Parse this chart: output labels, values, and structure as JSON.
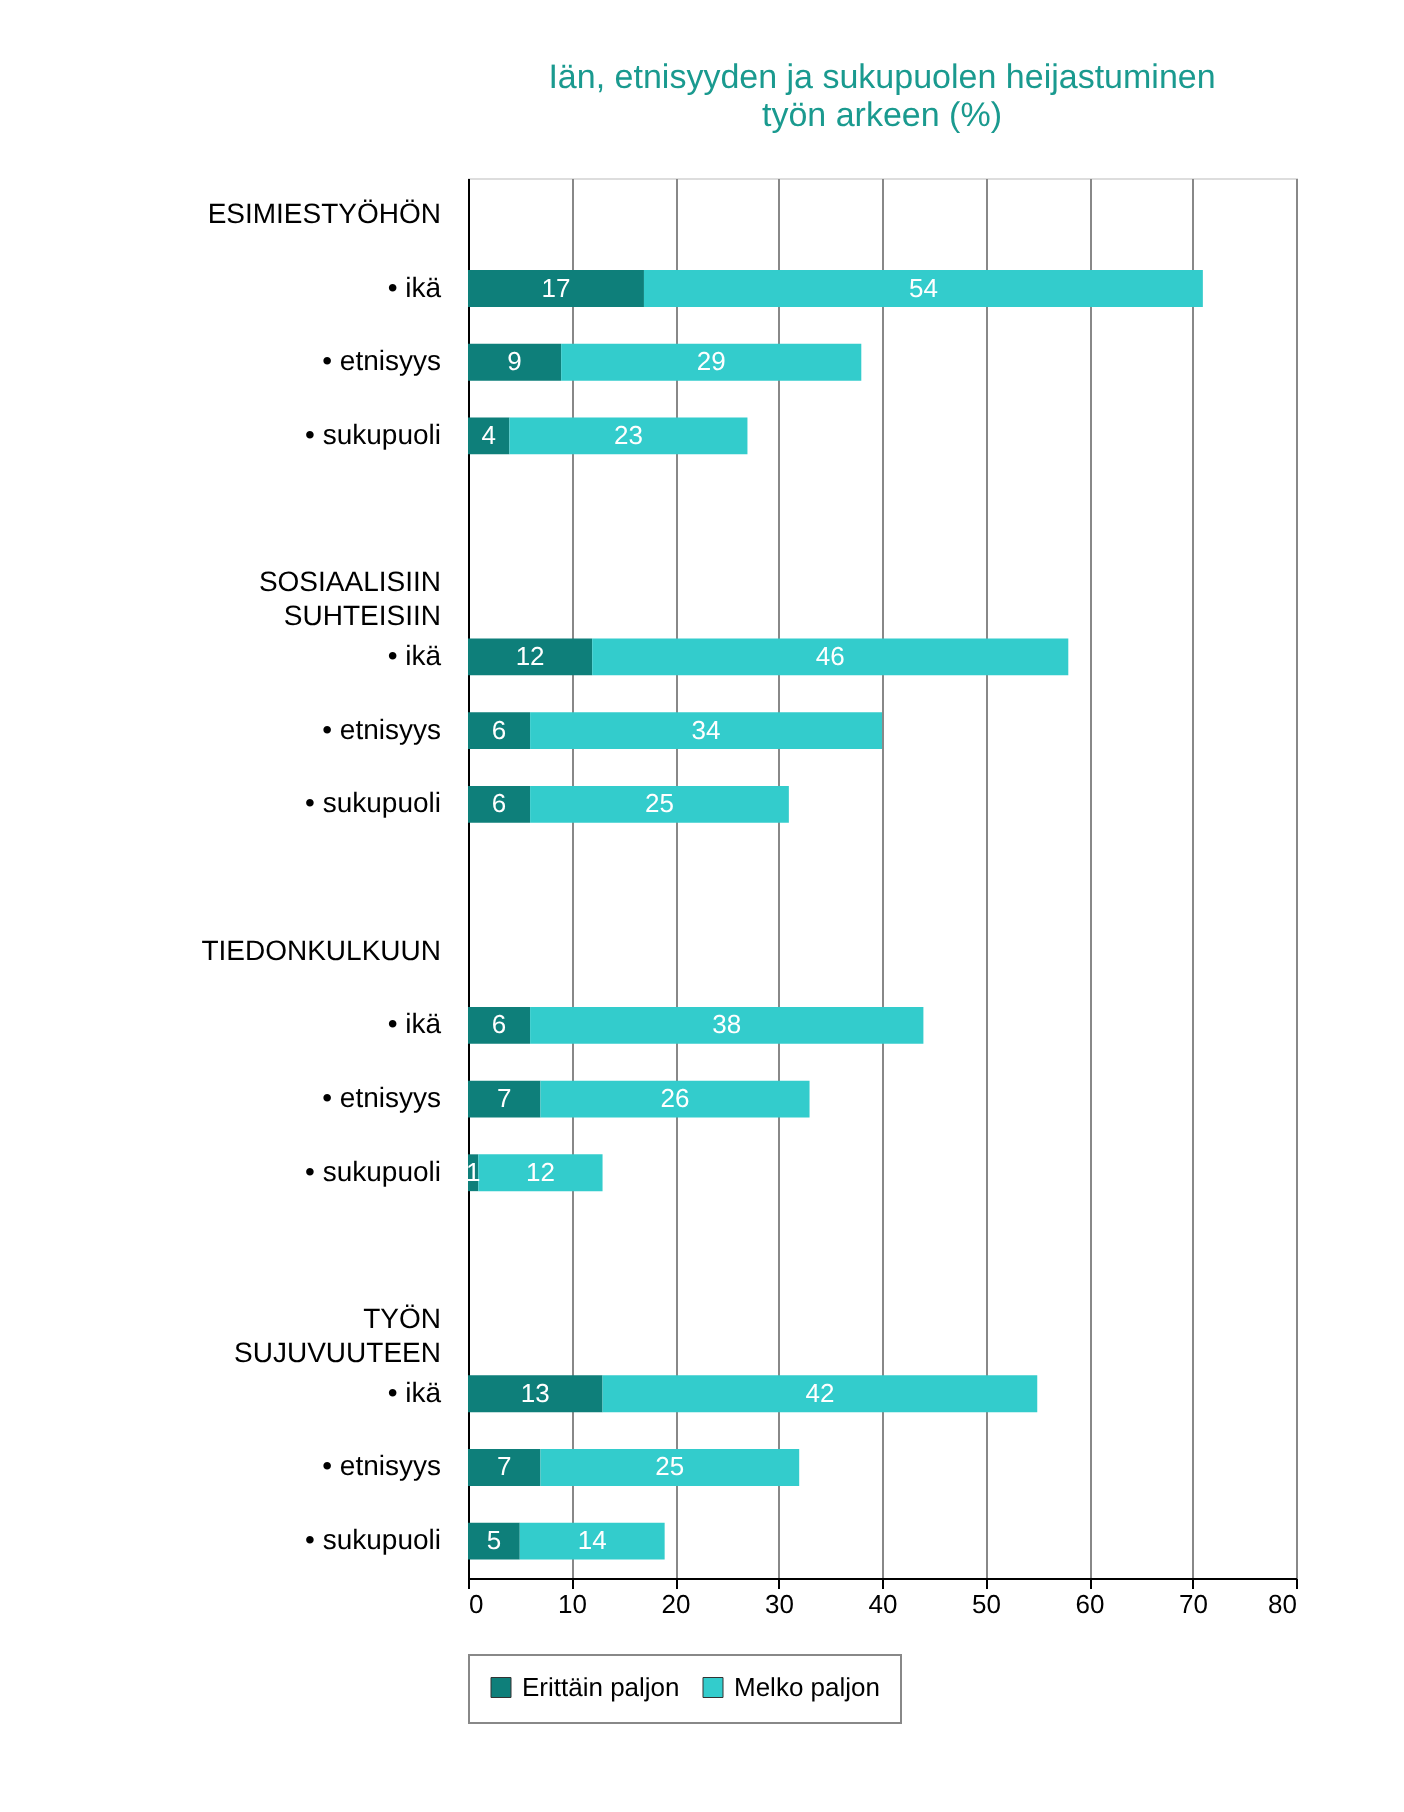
{
  "chart_data": {
    "type": "bar",
    "orientation": "horizontal",
    "stacked": true,
    "title": "Iän, etnisyyden ja sukupuolen heijastuminen\ntyön arkeen (%)",
    "categories": [
      "ESIMIESTYÖHÖN",
      "• ikä",
      "• etnisyys",
      "• sukupuoli",
      null,
      "SOSIAALISIIN\nSUHTEISIIN",
      "• ikä",
      "• etnisyys",
      "• sukupuoli",
      null,
      "TIEDONKULKUUN",
      "• ikä",
      "• etnisyys",
      "• sukupuoli",
      null,
      "TYÖN\nSUJUVUUTEEN",
      "• ikä",
      "• etnisyys",
      "• sukupuoli"
    ],
    "series": [
      {
        "name": "Erittäin paljon",
        "color": "#0e7f7a",
        "values": [
          null,
          17,
          9,
          4,
          null,
          null,
          12,
          6,
          6,
          null,
          null,
          6,
          7,
          1,
          null,
          null,
          13,
          7,
          5
        ]
      },
      {
        "name": "Melko paljon",
        "color": "#33cccc",
        "values": [
          null,
          54,
          29,
          23,
          null,
          null,
          46,
          34,
          25,
          null,
          null,
          38,
          26,
          12,
          null,
          null,
          42,
          25,
          14
        ]
      }
    ],
    "xlim": [
      0,
      80
    ],
    "xticks": [
      0,
      10,
      20,
      30,
      40,
      50,
      60,
      70,
      80
    ],
    "grid": "x",
    "legend": "bottom",
    "data_labels": true
  }
}
